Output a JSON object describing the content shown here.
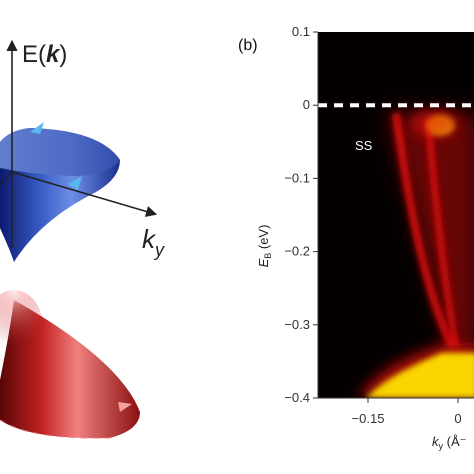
{
  "figure": {
    "panel_b_label": "(b)",
    "left_axis_label_e": "E(",
    "left_axis_label_k": "k",
    "left_axis_label_close": ")",
    "left_axis_ky_main": "k",
    "left_axis_ky_sub": "y"
  },
  "chart_data": {
    "type": "heatmap",
    "title": "",
    "ylabel_main": "E",
    "ylabel_sub": "B",
    "ylabel_unit": " (eV)",
    "xlabel_main": "k",
    "xlabel_sub": "y",
    "xlabel_unit": " (Å⁻",
    "ylim": [
      -0.4,
      0.1
    ],
    "xlim": [
      -0.18,
      0.0
    ],
    "y_ticks": [
      0.1,
      0,
      -0.1,
      -0.2,
      -0.3,
      -0.4
    ],
    "y_tick_labels": [
      "0.1",
      "0",
      "−0.1",
      "−0.2",
      "−0.3",
      "−0.4"
    ],
    "x_ticks": [
      -0.15,
      0.0
    ],
    "x_tick_labels": [
      "−0.15",
      "0"
    ],
    "annotation": "SS",
    "fermi_level_eV": 0,
    "dirac_point_eV": -0.33,
    "colors": {
      "background": "#050000",
      "band": "#e01010",
      "hot": "#ffe000"
    }
  }
}
